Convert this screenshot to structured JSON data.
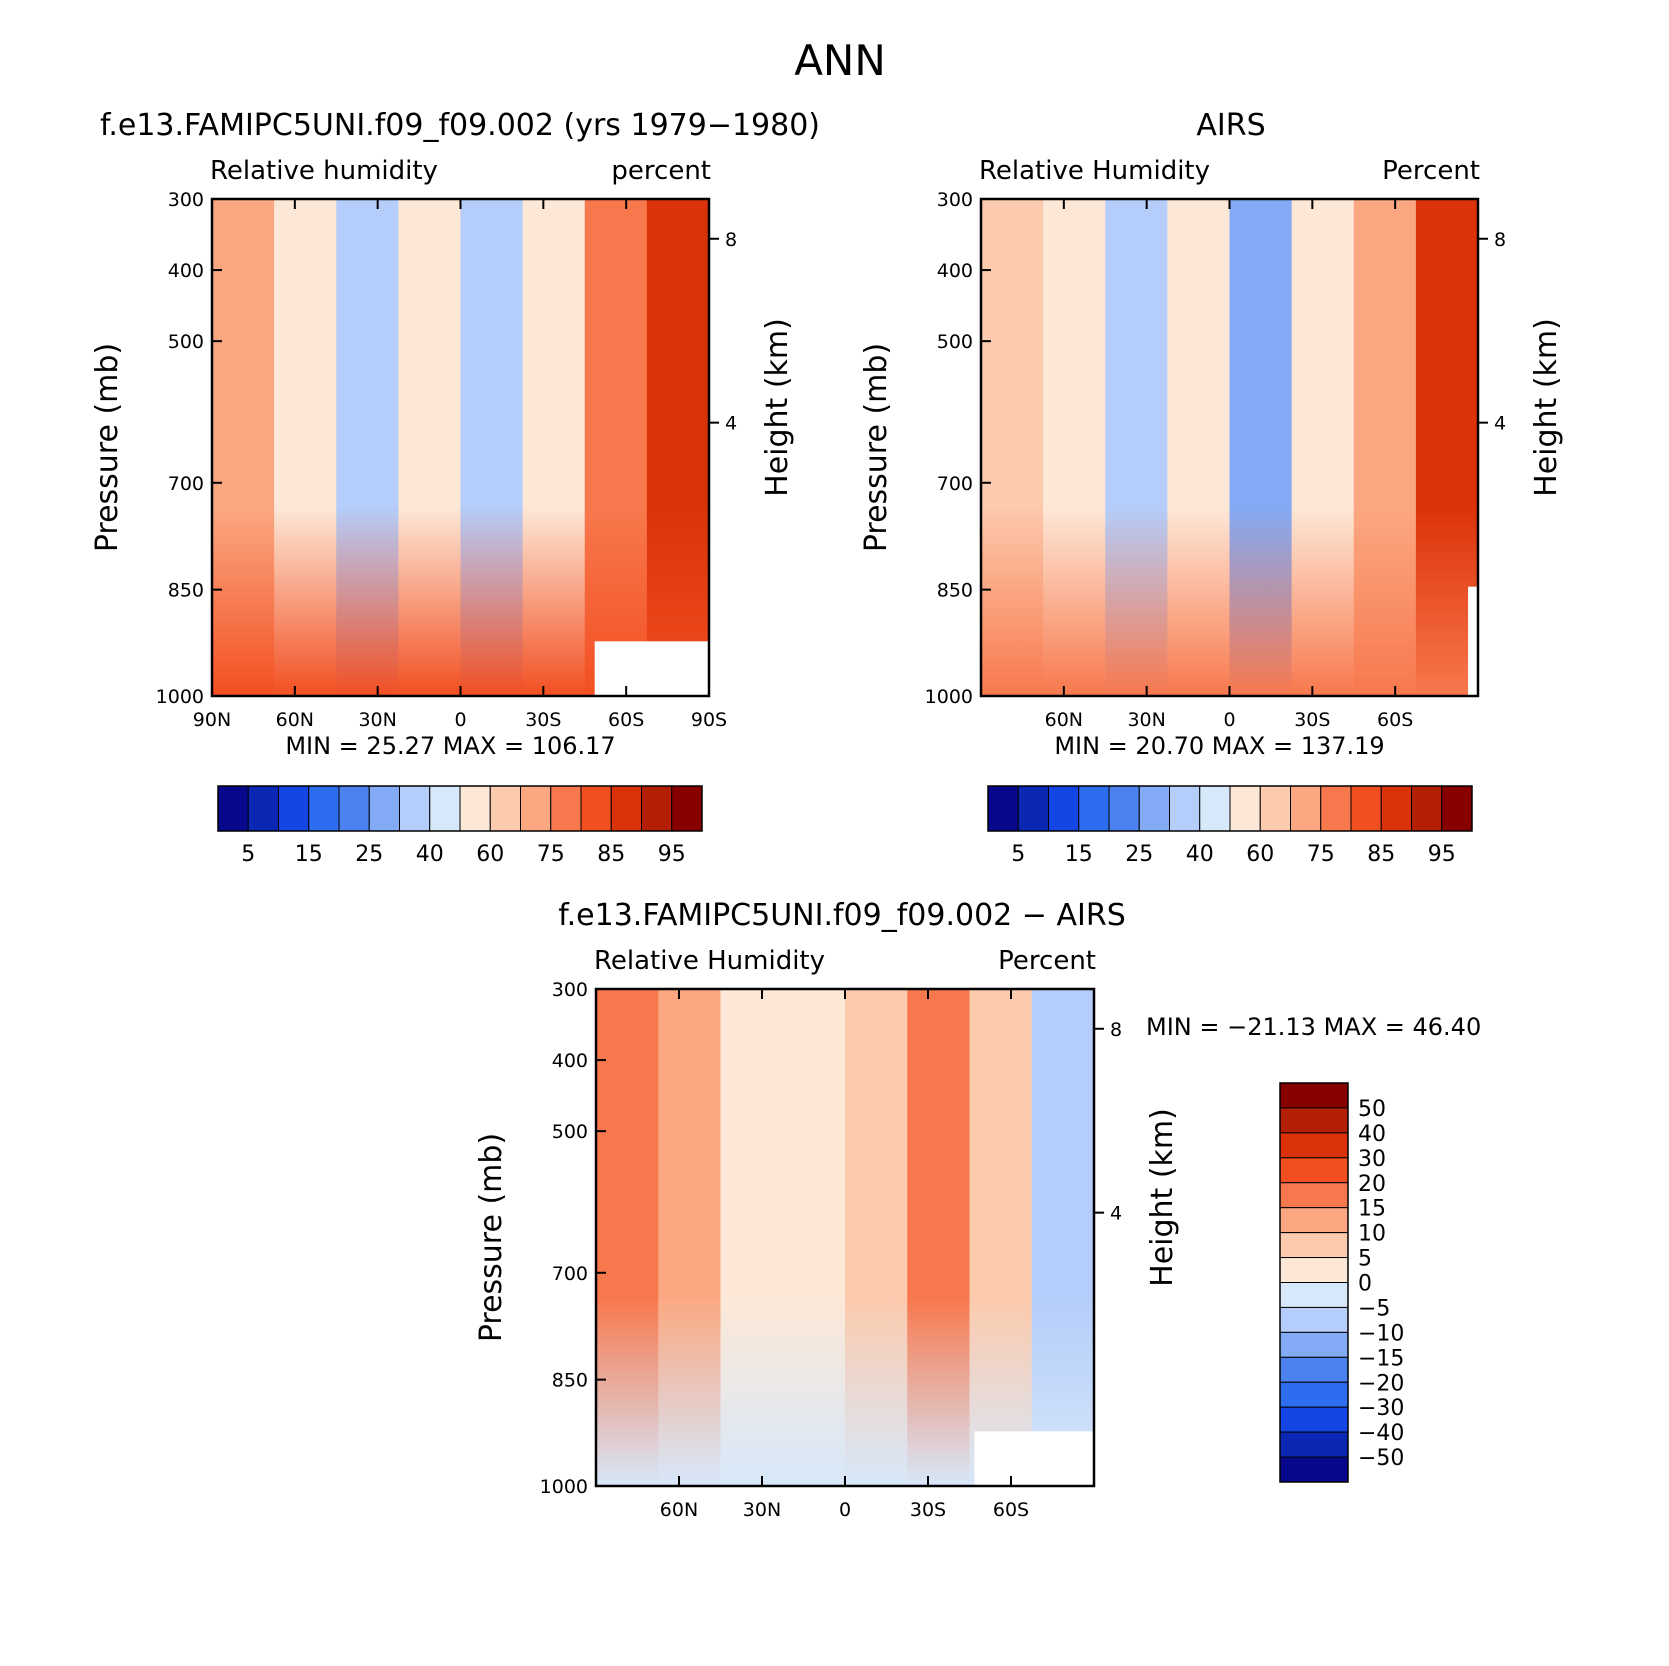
{
  "figure_title": "ANN",
  "chart_data": [
    {
      "type": "contour",
      "title": "f.e13.FAMIPC5UNI.f09_f09.002 (yrs 1979−1980)",
      "left_label": "Relative humidity",
      "right_label": "percent",
      "ylabel": "Pressure (mb)",
      "y2label": "Height (km)",
      "x_ticks": [
        "90N",
        "60N",
        "30N",
        "0",
        "30S",
        "60S",
        "90S"
      ],
      "y_ticks": [
        "300",
        "400",
        "500",
        "700",
        "850",
        "1000"
      ],
      "y2_ticks": [
        "8",
        "4"
      ],
      "min_label": "MIN =",
      "min_value": "25.27",
      "max_label": "MAX =",
      "max_value": "106.17",
      "colorbar": {
        "orientation": "horizontal",
        "labels": [
          "5",
          "15",
          "25",
          "40",
          "60",
          "75",
          "85",
          "95"
        ],
        "colors": [
          "#08088c",
          "#0a28b4",
          "#1446e6",
          "#2d6ef0",
          "#4b82f0",
          "#82aaf5",
          "#b4cdfa",
          "#d7e8fa",
          "#fde8d7",
          "#fccaad",
          "#fba882",
          "#f8784d",
          "#f24f21",
          "#dc320a",
          "#b42005",
          "#870000"
        ]
      }
    },
    {
      "type": "contour",
      "title": "AIRS",
      "left_label": "Relative Humidity",
      "right_label": "Percent",
      "ylabel": "Pressure (mb)",
      "y2label": "Height (km)",
      "x_ticks": [
        "60N",
        "30N",
        "0",
        "30S",
        "60S"
      ],
      "y_ticks": [
        "300",
        "400",
        "500",
        "700",
        "850",
        "1000"
      ],
      "y2_ticks": [
        "8",
        "4"
      ],
      "min_label": "MIN =",
      "min_value": "20.70",
      "max_label": "MAX =",
      "max_value": "137.19",
      "colorbar": {
        "orientation": "horizontal",
        "labels": [
          "5",
          "15",
          "25",
          "40",
          "60",
          "75",
          "85",
          "95"
        ],
        "colors": [
          "#08088c",
          "#0a28b4",
          "#1446e6",
          "#2d6ef0",
          "#4b82f0",
          "#82aaf5",
          "#b4cdfa",
          "#d7e8fa",
          "#fde8d7",
          "#fccaad",
          "#fba882",
          "#f8784d",
          "#f24f21",
          "#dc320a",
          "#b42005",
          "#870000"
        ]
      }
    },
    {
      "type": "contour",
      "title": "f.e13.FAMIPC5UNI.f09_f09.002 − AIRS",
      "left_label": "Relative Humidity",
      "right_label": "Percent",
      "ylabel": "Pressure (mb)",
      "y2label": "Height (km)",
      "x_ticks": [
        "60N",
        "30N",
        "0",
        "30S",
        "60S"
      ],
      "y_ticks": [
        "300",
        "400",
        "500",
        "700",
        "850",
        "1000"
      ],
      "y2_ticks": [
        "8",
        "4"
      ],
      "min_label": "MIN =",
      "min_value": "−21.13",
      "max_label": "MAX =",
      "max_value": "46.40",
      "colorbar": {
        "orientation": "vertical",
        "labels": [
          "50",
          "40",
          "30",
          "20",
          "15",
          "10",
          "5",
          "0",
          "−5",
          "−10",
          "−15",
          "−20",
          "−30",
          "−40",
          "−50"
        ],
        "colors": [
          "#870000",
          "#b42005",
          "#dc320a",
          "#f24f21",
          "#f8784d",
          "#fba882",
          "#fccaad",
          "#fde8d7",
          "#d7e8fa",
          "#b4cdfa",
          "#82aaf5",
          "#4b82f0",
          "#2d6ef0",
          "#1446e6",
          "#0a28b4",
          "#08088c"
        ]
      }
    }
  ]
}
